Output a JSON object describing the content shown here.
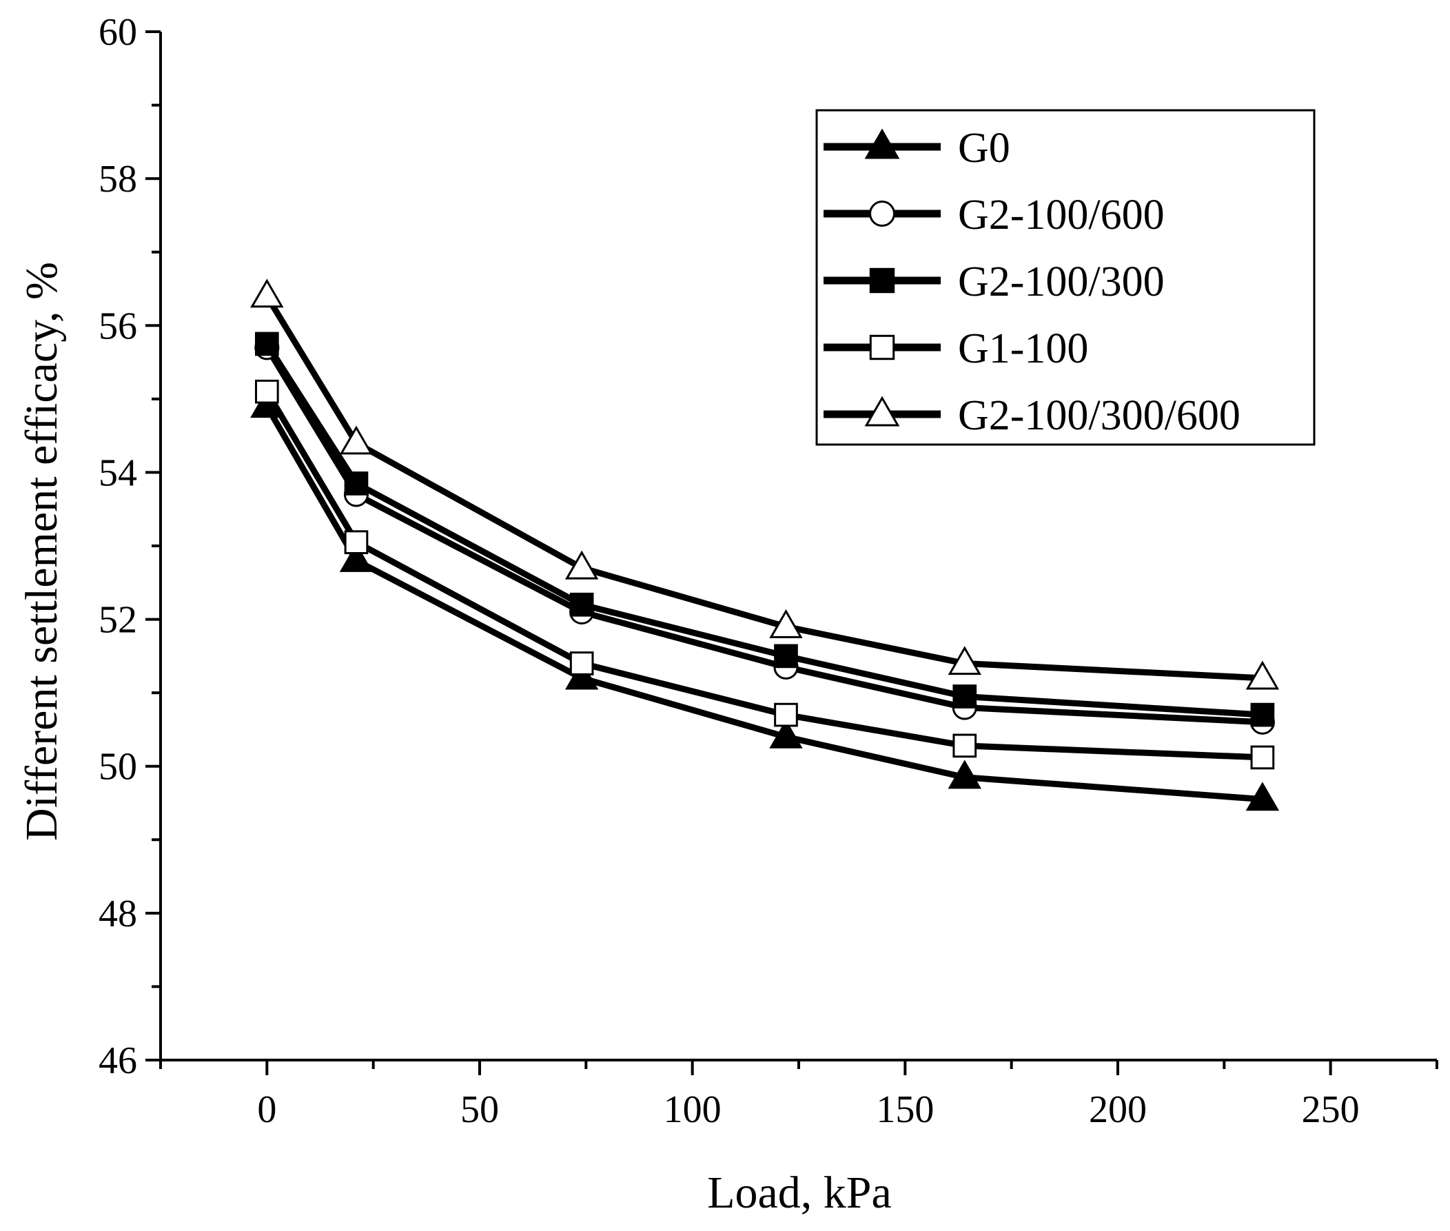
{
  "chart_data": {
    "type": "line",
    "title": "",
    "xlabel": "Load, kPa",
    "ylabel": "Different settlement efficacy, %",
    "xlim": [
      -25,
      275
    ],
    "ylim": [
      46,
      60
    ],
    "x_ticks": [
      0,
      50,
      100,
      150,
      200,
      250
    ],
    "y_ticks": [
      46,
      48,
      50,
      52,
      54,
      56,
      58,
      60
    ],
    "grid": false,
    "legend_position": "top-right",
    "x": [
      0,
      21,
      74,
      122,
      164,
      234
    ],
    "series": [
      {
        "name": "G0",
        "marker": "filled-triangle",
        "values": [
          54.9,
          52.8,
          51.2,
          50.4,
          49.85,
          49.55
        ]
      },
      {
        "name": "G2-100/600",
        "marker": "open-circle",
        "values": [
          55.7,
          53.7,
          52.1,
          51.35,
          50.8,
          50.6
        ]
      },
      {
        "name": "G2-100/300",
        "marker": "filled-square",
        "values": [
          55.75,
          53.85,
          52.2,
          51.5,
          50.95,
          50.7
        ]
      },
      {
        "name": "G1-100",
        "marker": "open-square",
        "values": [
          55.1,
          53.05,
          51.4,
          50.7,
          50.28,
          50.12
        ]
      },
      {
        "name": "G2-100/300/600",
        "marker": "open-triangle",
        "values": [
          56.4,
          54.4,
          52.7,
          51.9,
          51.4,
          51.2
        ]
      }
    ],
    "colors": {
      "line": "#000000",
      "marker_fill_open": "#ffffff",
      "marker_fill_solid": "#000000"
    }
  }
}
